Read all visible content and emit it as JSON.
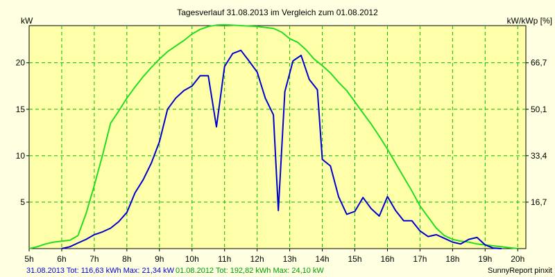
{
  "chart_data": {
    "type": "line",
    "title": "Tagesverlauf 31.08.2013 im Vergleich zum 01.08.2012",
    "ylabel_left": "kW",
    "ylabel_right": "kW/kWp [%]",
    "xlim": [
      5,
      20.25
    ],
    "ylim": [
      0,
      24
    ],
    "x_ticks": [
      5,
      6,
      7,
      8,
      9,
      10,
      11,
      12,
      13,
      14,
      15,
      16,
      17,
      18,
      19,
      20
    ],
    "x_tick_labels": [
      "5h",
      "6h",
      "7h",
      "8h",
      "9h",
      "10h",
      "11h",
      "12h",
      "13h",
      "14h",
      "15h",
      "16h",
      "17h",
      "18h",
      "19h",
      "20h"
    ],
    "y_ticks": [
      5,
      10,
      15,
      20
    ],
    "y_tick_labels": [
      "5",
      "10",
      "15",
      "20"
    ],
    "right_ticks": [
      5,
      10,
      15,
      20
    ],
    "right_tick_labels": [
      "16,7",
      "33,4",
      "50,1",
      "66,7"
    ],
    "grid": true,
    "colors": {
      "background": "#ffffe1",
      "plot_background": "#ffffaa",
      "grid": "#00bb00",
      "series_2013": "#0000cc",
      "series_2012": "#22dd22"
    },
    "series": [
      {
        "name": "31.08.2013",
        "color": "#0000cc",
        "points": [
          [
            6.0,
            0
          ],
          [
            6.25,
            0.2
          ],
          [
            6.5,
            0.6
          ],
          [
            6.75,
            1.0
          ],
          [
            7.0,
            1.5
          ],
          [
            7.25,
            1.8
          ],
          [
            7.5,
            2.2
          ],
          [
            7.75,
            2.9
          ],
          [
            8.0,
            3.9
          ],
          [
            8.25,
            6.0
          ],
          [
            8.5,
            7.4
          ],
          [
            8.75,
            9.2
          ],
          [
            9.0,
            11.5
          ],
          [
            9.25,
            15.0
          ],
          [
            9.5,
            16.2
          ],
          [
            9.75,
            17.0
          ],
          [
            10.0,
            17.5
          ],
          [
            10.25,
            18.6
          ],
          [
            10.5,
            18.6
          ],
          [
            10.75,
            13.1
          ],
          [
            11.0,
            19.6
          ],
          [
            11.25,
            21.0
          ],
          [
            11.5,
            21.34
          ],
          [
            11.75,
            20.2
          ],
          [
            12.0,
            19.0
          ],
          [
            12.25,
            16.2
          ],
          [
            12.5,
            14.4
          ],
          [
            12.65,
            4.1
          ],
          [
            12.85,
            16.9
          ],
          [
            13.1,
            20.2
          ],
          [
            13.35,
            20.8
          ],
          [
            13.6,
            18.2
          ],
          [
            13.85,
            17.1
          ],
          [
            14.0,
            9.6
          ],
          [
            14.25,
            8.9
          ],
          [
            14.5,
            5.6
          ],
          [
            14.75,
            3.7
          ],
          [
            15.0,
            4.0
          ],
          [
            15.25,
            5.5
          ],
          [
            15.5,
            4.3
          ],
          [
            15.75,
            3.5
          ],
          [
            16.0,
            5.6
          ],
          [
            16.25,
            4.1
          ],
          [
            16.5,
            3.0
          ],
          [
            16.75,
            3.0
          ],
          [
            17.0,
            1.9
          ],
          [
            17.25,
            1.3
          ],
          [
            17.5,
            1.5
          ],
          [
            17.75,
            1.1
          ],
          [
            18.0,
            0.7
          ],
          [
            18.25,
            0.5
          ],
          [
            18.5,
            1.0
          ],
          [
            18.75,
            1.2
          ],
          [
            19.0,
            0.4
          ],
          [
            19.25,
            0.05
          ],
          [
            19.5,
            0
          ]
        ]
      },
      {
        "name": "01.08.2012",
        "color": "#22dd22",
        "points": [
          [
            5.0,
            0
          ],
          [
            5.25,
            0.2
          ],
          [
            5.5,
            0.5
          ],
          [
            5.75,
            0.7
          ],
          [
            6.0,
            0.8
          ],
          [
            6.25,
            0.9
          ],
          [
            6.5,
            1.4
          ],
          [
            6.75,
            3.8
          ],
          [
            7.0,
            6.8
          ],
          [
            7.25,
            10.0
          ],
          [
            7.5,
            13.5
          ],
          [
            7.75,
            14.8
          ],
          [
            8.0,
            16.2
          ],
          [
            8.25,
            17.4
          ],
          [
            8.5,
            18.5
          ],
          [
            8.75,
            19.5
          ],
          [
            9.0,
            20.4
          ],
          [
            9.25,
            21.2
          ],
          [
            9.5,
            21.8
          ],
          [
            9.75,
            22.4
          ],
          [
            10.0,
            23.1
          ],
          [
            10.25,
            23.6
          ],
          [
            10.5,
            23.9
          ],
          [
            10.75,
            24.05
          ],
          [
            11.0,
            24.1
          ],
          [
            11.5,
            24.0
          ],
          [
            12.0,
            23.9
          ],
          [
            12.5,
            23.7
          ],
          [
            12.75,
            23.3
          ],
          [
            13.0,
            22.6
          ],
          [
            13.25,
            22.2
          ],
          [
            13.5,
            21.4
          ],
          [
            13.75,
            20.4
          ],
          [
            14.0,
            19.7
          ],
          [
            14.25,
            18.9
          ],
          [
            14.5,
            17.9
          ],
          [
            14.75,
            17.0
          ],
          [
            15.0,
            15.8
          ],
          [
            15.25,
            14.6
          ],
          [
            15.5,
            13.4
          ],
          [
            15.75,
            12.1
          ],
          [
            16.0,
            10.7
          ],
          [
            16.25,
            9.2
          ],
          [
            16.5,
            7.7
          ],
          [
            16.75,
            6.2
          ],
          [
            17.0,
            4.6
          ],
          [
            17.25,
            3.4
          ],
          [
            17.5,
            2.2
          ],
          [
            17.75,
            1.4
          ],
          [
            18.0,
            1.0
          ],
          [
            18.25,
            0.8
          ],
          [
            18.5,
            0.7
          ],
          [
            18.75,
            0.5
          ],
          [
            19.0,
            0.4
          ],
          [
            19.25,
            0.3
          ],
          [
            19.5,
            0.2
          ],
          [
            19.75,
            0.1
          ],
          [
            20.0,
            0
          ]
        ]
      }
    ]
  },
  "footer": {
    "legend_2013": "31.08.2013 Tot: 116,63 kWh Max: 21,34 kW",
    "legend_2012": "01.08.2012 Tot: 192,82 kWh Max: 24,10 kW",
    "credit": "SunnyReport pinxit"
  }
}
